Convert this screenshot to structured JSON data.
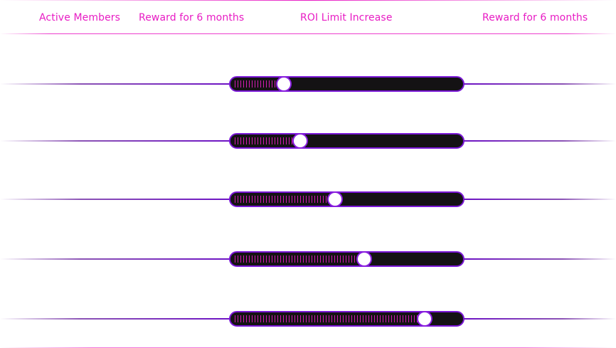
{
  "header": {
    "columns": [
      {
        "label": "Active Members"
      },
      {
        "label": "Reward for 6 months"
      },
      {
        "label": "ROI Limit Increase"
      },
      {
        "label": "Reward for 6 months"
      }
    ]
  },
  "sliders": [
    {
      "value": 0.23
    },
    {
      "value": 0.3
    },
    {
      "value": 0.45
    },
    {
      "value": 0.575
    },
    {
      "value": 0.835
    }
  ],
  "colors": {
    "accent": "#e81cc4",
    "line": "#6d12c4",
    "track": "#141214",
    "border": "#7a17d6",
    "thumb": "#ffffff"
  }
}
